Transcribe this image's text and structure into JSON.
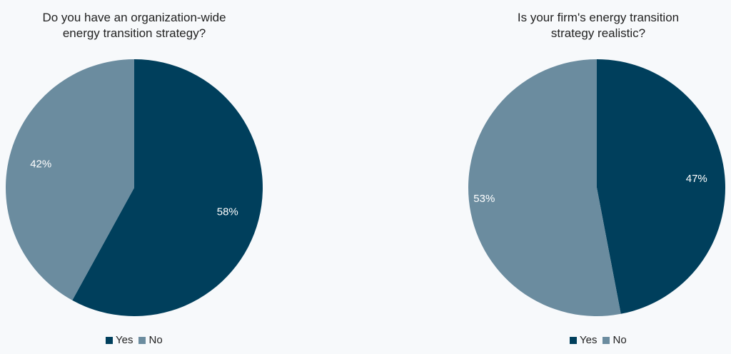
{
  "colors": {
    "yes": "#003f5c",
    "no": "#6b8c9f",
    "label": "#ffffff"
  },
  "chart_data": [
    {
      "type": "pie",
      "title_lines": [
        "Do you have an organization-wide",
        "energy transition strategy?"
      ],
      "slices": [
        {
          "name": "Yes",
          "value": 58,
          "label": "58%",
          "color": "#003f5c"
        },
        {
          "name": "No",
          "value": 42,
          "label": "42%",
          "color": "#6b8c9f"
        }
      ],
      "legend": [
        "Yes",
        "No"
      ],
      "legend_position": "bottom"
    },
    {
      "type": "pie",
      "title_lines": [
        "Is your firm's energy transition",
        "strategy realistic?"
      ],
      "slices": [
        {
          "name": "Yes",
          "value": 47,
          "label": "47%",
          "color": "#003f5c"
        },
        {
          "name": "No",
          "value": 53,
          "label": "53%",
          "color": "#6b8c9f"
        }
      ],
      "legend": [
        "Yes",
        "No"
      ],
      "legend_position": "bottom"
    }
  ]
}
